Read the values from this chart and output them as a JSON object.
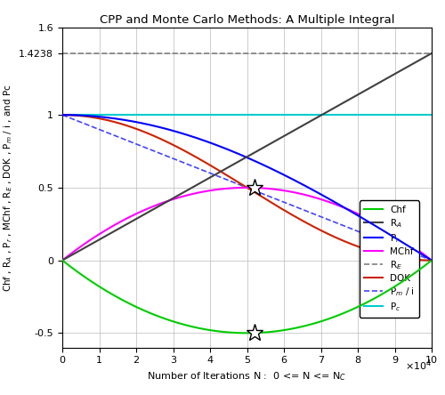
{
  "title": "CPP and Monte Carlo Methods: A Multiple Integral",
  "xlabel": "Number of Iterations N :  0 <= N <= N_C",
  "ylabel": "Chf , R_A , P_r , MChf , R_E , DOK , P_m / i , and Pc",
  "xlim": [
    0,
    100000
  ],
  "ylim": [
    -0.6,
    1.6
  ],
  "xticks": [
    0,
    10000,
    20000,
    30000,
    40000,
    50000,
    60000,
    70000,
    80000,
    90000,
    100000
  ],
  "yticks": [
    -0.5,
    0,
    0.5,
    1.0,
    1.4238,
    1.6
  ],
  "RE_value": 1.4238,
  "Pc_value": 1.0,
  "N_mid": 50000,
  "N_max": 100000,
  "colors": {
    "Chf": "#00CC00",
    "RA": "#404040",
    "Pr": "#0000FF",
    "MChf": "#FF00FF",
    "RE": "#808080",
    "DOK": "#CC2200",
    "Pm_i": "#4444FF",
    "Pc": "#00CCCC"
  },
  "star_upper": [
    52000,
    0.5
  ],
  "star_lower": [
    52000,
    -0.5
  ],
  "figsize": [
    5.0,
    4.44
  ],
  "dpi": 100
}
